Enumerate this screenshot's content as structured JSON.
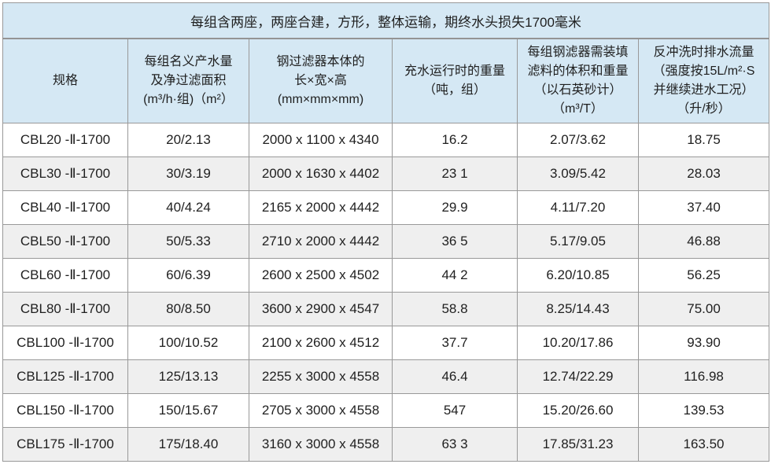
{
  "table": {
    "title": "每组含两座，两座合建，方形，整体运输，期终水头损失1700毫米",
    "headers": [
      "规格",
      "每组名义产水量\n及净过滤面积\n(m³/h·组)（m²）",
      "钢过滤器本体的\n长×宽×高\n(mm×mm×mm)",
      "充水运行时的重量\n（吨，组）",
      "每组钢滤器需装填\n滤料的体积和重量\n（以石英砂计）\n（m³/T）",
      "反冲洗时排水流量\n（强度按15L/m²·S\n并继续进水工况）\n（升/秒）"
    ],
    "rows": [
      [
        "CBL20 -Ⅱ-1700",
        "20/2.13",
        "2000 x 1100 x 4340",
        "16.2",
        "2.07/3.62",
        "18.75"
      ],
      [
        "CBL30 -Ⅱ-1700",
        "30/3.19",
        "2000 x 1630 x 4402",
        "23 1",
        "3.09/5.42",
        "28.03"
      ],
      [
        "CBL40 -Ⅱ-1700",
        "40/4.24",
        "2165 x 2000 x 4442",
        "29.9",
        "4.11/7.20",
        "37.40"
      ],
      [
        "CBL50 -Ⅱ-1700",
        "50/5.33",
        "2710 x 2000 x 4442",
        "36 5",
        "5.17/9.05",
        "46.88"
      ],
      [
        "CBL60 -Ⅱ-1700",
        "60/6.39",
        "2600 x 2500 x 4502",
        "44 2",
        "6.20/10.85",
        "56.25"
      ],
      [
        "CBL80 -Ⅱ-1700",
        "80/8.50",
        "3600 x 2900 x 4547",
        "58.8",
        "8.25/14.43",
        "75.00"
      ],
      [
        "CBL100 -Ⅱ-1700",
        "100/10.52",
        "2100 x 2600 x 4512",
        "37.7",
        "10.20/17.86",
        "93.90"
      ],
      [
        "CBL125 -Ⅱ-1700",
        "125/13.13",
        "2255 x 3000 x 4558",
        "46.4",
        "12.74/22.29",
        "116.98"
      ],
      [
        "CBL150 -Ⅱ-1700",
        "150/15.67",
        "2705 x 3000 x 4558",
        "547",
        "15.20/26.60",
        "139.53"
      ],
      [
        "CBL175 -Ⅱ-1700",
        "175/18.40",
        "3160 x 3000 x 4558",
        "63 3",
        "17.85/31.23",
        "163.50"
      ]
    ],
    "colors": {
      "header_bg": "#d5e8f4",
      "row_bg": "#ffffff",
      "row_alt_bg": "#efefef",
      "border": "#999999",
      "text": "#1f1f1f"
    }
  }
}
